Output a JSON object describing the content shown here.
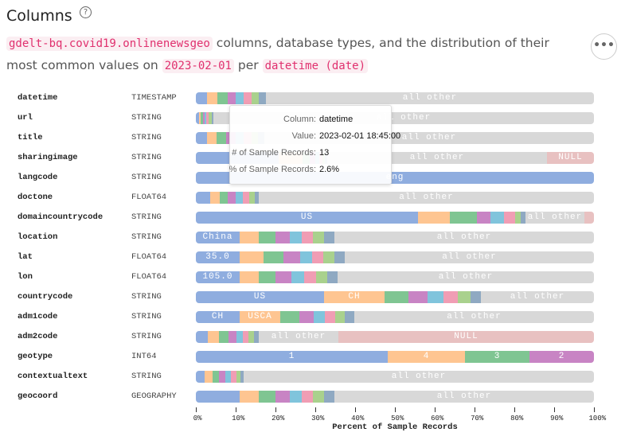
{
  "header": {
    "title": "Columns",
    "help_icon": "question-circle-icon",
    "table_name": "gdelt-bq.covid19.onlinenewsgeo",
    "desc_1": " columns, database types, and the distribution of their most common values on ",
    "date": "2023-02-01",
    "desc_2": " per ",
    "partition": "datetime (date)",
    "more_icon": "ellipsis-icon",
    "more_label": "•••"
  },
  "colors": {
    "c0": "#8faddf",
    "c1": "#fec591",
    "c2": "#7fc592",
    "c3": "#c884c4",
    "c4": "#80c4dc",
    "c5": "#f09db4",
    "c6": "#a9d18d",
    "c7": "#8fa9c2",
    "other": "#d8d8d8",
    "null": "#e8c1c1"
  },
  "chart_data": {
    "type": "bar",
    "orientation": "horizontal-stacked",
    "xlabel": "Percent of Sample Records",
    "xlim": [
      0,
      100
    ],
    "ticks": [
      "0%",
      "10%",
      "20%",
      "30%",
      "40%",
      "50%",
      "60%",
      "70%",
      "80%",
      "90%",
      "100%"
    ],
    "rows": [
      {
        "name": "datetime",
        "type": "TIMESTAMP",
        "segments": [
          {
            "v": 2.8
          },
          {
            "v": 2.6
          },
          {
            "v": 2.6
          },
          {
            "v": 2
          },
          {
            "v": 2
          },
          {
            "v": 2
          },
          {
            "v": 1.8
          },
          {
            "v": 1.8
          },
          {
            "v": 82.4,
            "kind": "other",
            "label": "all other"
          }
        ]
      },
      {
        "name": "url",
        "type": "STRING",
        "segments": [
          {
            "v": 0.8
          },
          {
            "v": 0.4
          },
          {
            "v": 0.6
          },
          {
            "v": 0.4
          },
          {
            "v": 0.4
          },
          {
            "v": 0.6
          },
          {
            "v": 0.8
          },
          {
            "v": 0.4
          },
          {
            "v": 95.6,
            "kind": "other",
            "label": "all other"
          }
        ]
      },
      {
        "name": "title",
        "type": "STRING",
        "segments": [
          {
            "v": 2.8
          },
          {
            "v": 2.4
          },
          {
            "v": 2.4
          },
          {
            "v": 2.4
          },
          {
            "v": 2
          },
          {
            "v": 2
          },
          {
            "v": 1.6
          },
          {
            "v": 1.6
          },
          {
            "v": 82.8,
            "kind": "other",
            "label": "all other"
          }
        ]
      },
      {
        "name": "sharingimage",
        "type": "STRING",
        "segments": [
          {
            "v": 20.8
          },
          {
            "v": 6
          },
          {
            "v": 1.8
          },
          {
            "v": 1.4
          },
          {
            "v": 1
          },
          {
            "v": 0.8
          },
          {
            "v": 0.6
          },
          {
            "v": 0.6
          },
          {
            "v": 55.2,
            "kind": "other",
            "label": "all other"
          },
          {
            "v": 11.8,
            "kind": "null",
            "label": "NULL"
          }
        ]
      },
      {
        "name": "langcode",
        "type": "STRING",
        "segments": [
          {
            "v": 100,
            "label": "eng"
          }
        ]
      },
      {
        "name": "doctone",
        "type": "FLOAT64",
        "segments": [
          {
            "v": 3.6
          },
          {
            "v": 2.4
          },
          {
            "v": 2
          },
          {
            "v": 2
          },
          {
            "v": 1.8
          },
          {
            "v": 1.6
          },
          {
            "v": 1.4
          },
          {
            "v": 1
          },
          {
            "v": 84.2,
            "kind": "other",
            "label": "all other"
          }
        ]
      },
      {
        "name": "domaincountrycode",
        "type": "STRING",
        "segments": [
          {
            "v": 55.8,
            "label": "US"
          },
          {
            "v": 8
          },
          {
            "v": 6.8
          },
          {
            "v": 3.4
          },
          {
            "v": 3.4
          },
          {
            "v": 2.8
          },
          {
            "v": 1.4
          },
          {
            "v": 1.2
          },
          {
            "v": 14.8,
            "kind": "other",
            "label": "all other"
          },
          {
            "v": 2.4,
            "kind": "null"
          }
        ]
      },
      {
        "name": "location",
        "type": "STRING",
        "segments": [
          {
            "v": 11,
            "label": "China"
          },
          {
            "v": 4.8
          },
          {
            "v": 4.2
          },
          {
            "v": 3.6
          },
          {
            "v": 3
          },
          {
            "v": 2.8
          },
          {
            "v": 2.8
          },
          {
            "v": 2.6
          },
          {
            "v": 65.2,
            "kind": "other",
            "label": "all other"
          }
        ]
      },
      {
        "name": "lat",
        "type": "FLOAT64",
        "segments": [
          {
            "v": 11,
            "label": "35.0"
          },
          {
            "v": 6
          },
          {
            "v": 5
          },
          {
            "v": 4.2
          },
          {
            "v": 3
          },
          {
            "v": 2.8
          },
          {
            "v": 2.8
          },
          {
            "v": 2.6
          },
          {
            "v": 62.6,
            "kind": "other",
            "label": "all other"
          }
        ]
      },
      {
        "name": "lon",
        "type": "FLOAT64",
        "segments": [
          {
            "v": 11,
            "label": "105.0"
          },
          {
            "v": 4.8
          },
          {
            "v": 4.2
          },
          {
            "v": 4
          },
          {
            "v": 3.2
          },
          {
            "v": 3
          },
          {
            "v": 2.8
          },
          {
            "v": 2.6
          },
          {
            "v": 64.4,
            "kind": "other",
            "label": "all other"
          }
        ]
      },
      {
        "name": "countrycode",
        "type": "STRING",
        "segments": [
          {
            "v": 32.2,
            "label": "US"
          },
          {
            "v": 15.2,
            "label": "CH"
          },
          {
            "v": 6
          },
          {
            "v": 4.8
          },
          {
            "v": 4
          },
          {
            "v": 3.6
          },
          {
            "v": 3.2
          },
          {
            "v": 2.6
          },
          {
            "v": 28.4,
            "kind": "other",
            "label": "all other"
          }
        ]
      },
      {
        "name": "adm1code",
        "type": "STRING",
        "segments": [
          {
            "v": 11,
            "label": "CH"
          },
          {
            "v": 10.2,
            "label": "USCA"
          },
          {
            "v": 4.8
          },
          {
            "v": 3.6
          },
          {
            "v": 2.8
          },
          {
            "v": 2.6
          },
          {
            "v": 2.4
          },
          {
            "v": 2.4
          },
          {
            "v": 60.2,
            "kind": "other",
            "label": "all other"
          }
        ]
      },
      {
        "name": "adm2code",
        "type": "STRING",
        "segments": [
          {
            "v": 3
          },
          {
            "v": 2.8
          },
          {
            "v": 2.4
          },
          {
            "v": 2
          },
          {
            "v": 1.6
          },
          {
            "v": 1.4
          },
          {
            "v": 1.4
          },
          {
            "v": 1.2
          },
          {
            "v": 20,
            "kind": "other",
            "label": "all other"
          },
          {
            "v": 64.2,
            "kind": "null",
            "label": "NULL"
          }
        ]
      },
      {
        "name": "geotype",
        "type": "INT64",
        "segments": [
          {
            "v": 48.2,
            "label": "1"
          },
          {
            "v": 19.4,
            "label": "4"
          },
          {
            "v": 16.2,
            "label": "3"
          },
          {
            "v": 16.2,
            "label": "2"
          }
        ]
      },
      {
        "name": "contextualtext",
        "type": "STRING",
        "segments": [
          {
            "v": 2.2
          },
          {
            "v": 2
          },
          {
            "v": 1.6
          },
          {
            "v": 1.6
          },
          {
            "v": 1.4
          },
          {
            "v": 1.4
          },
          {
            "v": 1
          },
          {
            "v": 0.8
          },
          {
            "v": 88,
            "kind": "other",
            "label": "all other"
          }
        ]
      },
      {
        "name": "geocoord",
        "type": "GEOGRAPHY",
        "segments": [
          {
            "v": 11
          },
          {
            "v": 4.8
          },
          {
            "v": 4.2
          },
          {
            "v": 3.6
          },
          {
            "v": 3
          },
          {
            "v": 2.8
          },
          {
            "v": 2.8
          },
          {
            "v": 2.6
          },
          {
            "v": 65.2,
            "kind": "other",
            "label": "all other"
          }
        ]
      }
    ]
  },
  "tooltip": {
    "column_label": "Column:",
    "column": "datetime",
    "value_label": "Value:",
    "value": "2023-02-01 18:45:00",
    "count_label": "# of Sample Records:",
    "count": "13",
    "pct_label": "% of Sample Records:",
    "pct": "2.6%"
  }
}
